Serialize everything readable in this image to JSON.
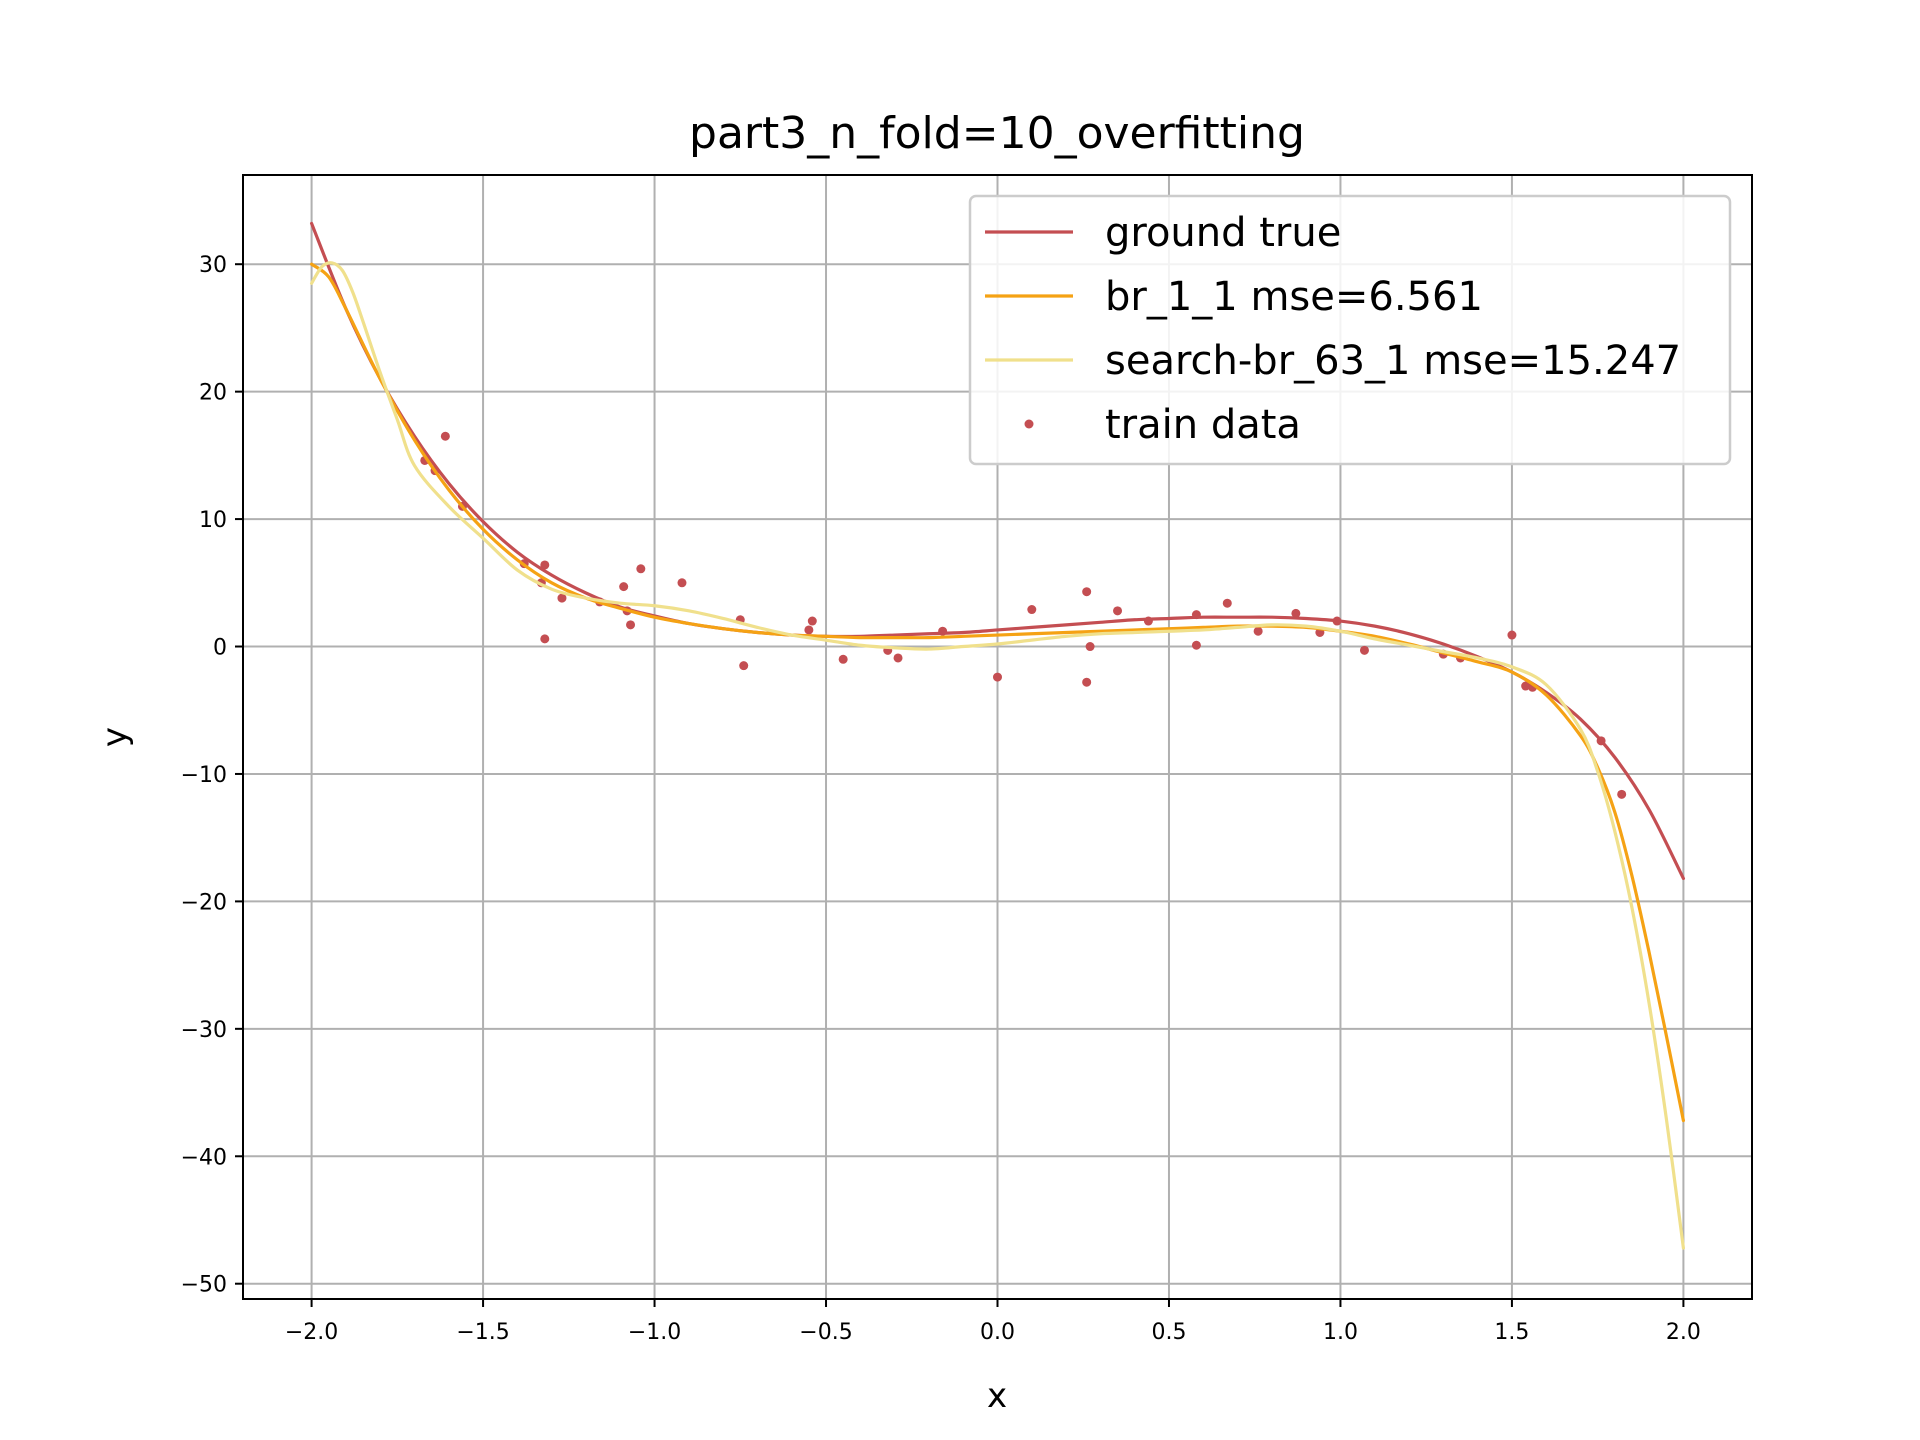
{
  "chart_data": {
    "type": "line",
    "title": "part3_n_fold=10_overfitting",
    "xlabel": "x",
    "ylabel": "y",
    "xlim": [
      -2.2,
      2.2
    ],
    "ylim": [
      -51.2,
      37
    ],
    "grid": true,
    "legend_position": "top-right",
    "x_ticks": [
      -2.0,
      -1.5,
      -1.0,
      -0.5,
      0.0,
      0.5,
      1.0,
      1.5,
      2.0
    ],
    "x_tick_labels": [
      "−2.0",
      "−1.5",
      "−1.0",
      "−0.5",
      "0.0",
      "0.5",
      "1.0",
      "1.5",
      "2.0"
    ],
    "y_ticks": [
      30,
      20,
      10,
      0,
      -10,
      -20,
      -30,
      -40,
      -50
    ],
    "y_tick_labels": [
      "30",
      "20",
      "10",
      "0",
      "−10",
      "−20",
      "−30",
      "−40",
      "−50"
    ],
    "series": [
      {
        "name": "ground true",
        "kind": "line",
        "color": "#c44e52",
        "x": [
          -2.0,
          -1.9,
          -1.8,
          -1.7,
          -1.6,
          -1.5,
          -1.4,
          -1.3,
          -1.2,
          -1.1,
          -1.0,
          -0.9,
          -0.8,
          -0.7,
          -0.6,
          -0.5,
          -0.4,
          -0.3,
          -0.2,
          -0.1,
          0.0,
          0.1,
          0.2,
          0.3,
          0.4,
          0.5,
          0.6,
          0.7,
          0.8,
          0.9,
          1.0,
          1.1,
          1.2,
          1.3,
          1.4,
          1.5,
          1.6,
          1.7,
          1.8,
          1.9,
          2.0
        ],
        "y": [
          33.2,
          26.5,
          21.0,
          16.5,
          12.8,
          9.8,
          7.4,
          5.6,
          4.2,
          3.1,
          2.4,
          1.8,
          1.4,
          1.1,
          0.9,
          0.8,
          0.8,
          0.9,
          1.0,
          1.1,
          1.3,
          1.5,
          1.7,
          1.9,
          2.1,
          2.2,
          2.3,
          2.3,
          2.3,
          2.2,
          2.0,
          1.6,
          1.0,
          0.2,
          -0.8,
          -2.0,
          -3.6,
          -5.7,
          -8.7,
          -12.8,
          -18.2
        ]
      },
      {
        "name": "br_1_1 mse=6.561",
        "kind": "line",
        "color": "#f5a214",
        "x": [
          -2.0,
          -1.95,
          -1.9,
          -1.8,
          -1.7,
          -1.6,
          -1.5,
          -1.4,
          -1.3,
          -1.2,
          -1.1,
          -1.0,
          -0.9,
          -0.8,
          -0.7,
          -0.6,
          -0.5,
          -0.4,
          -0.3,
          -0.2,
          -0.1,
          0.0,
          0.1,
          0.2,
          0.3,
          0.4,
          0.5,
          0.6,
          0.7,
          0.8,
          0.9,
          1.0,
          1.1,
          1.2,
          1.3,
          1.4,
          1.5,
          1.6,
          1.7,
          1.75,
          1.8,
          1.85,
          1.9,
          1.95,
          2.0
        ],
        "y": [
          30.0,
          29.0,
          26.5,
          21.0,
          16.2,
          12.3,
          9.2,
          6.8,
          5.0,
          3.8,
          3.0,
          2.3,
          1.8,
          1.4,
          1.1,
          0.9,
          0.8,
          0.7,
          0.7,
          0.7,
          0.8,
          0.9,
          1.0,
          1.1,
          1.2,
          1.3,
          1.4,
          1.5,
          1.6,
          1.6,
          1.5,
          1.2,
          0.8,
          0.2,
          -0.5,
          -1.2,
          -2.0,
          -3.8,
          -7.0,
          -9.5,
          -13.0,
          -18.0,
          -24.0,
          -30.5,
          -37.2
        ]
      },
      {
        "name": "search-br_63_1 mse=15.247",
        "kind": "line",
        "color": "#f0e08c",
        "x": [
          -2.0,
          -1.97,
          -1.94,
          -1.91,
          -1.88,
          -1.85,
          -1.8,
          -1.75,
          -1.7,
          -1.6,
          -1.5,
          -1.4,
          -1.3,
          -1.2,
          -1.1,
          -1.0,
          -0.9,
          -0.8,
          -0.7,
          -0.6,
          -0.5,
          -0.4,
          -0.3,
          -0.2,
          -0.1,
          0.0,
          0.1,
          0.2,
          0.3,
          0.4,
          0.5,
          0.6,
          0.7,
          0.8,
          0.9,
          1.0,
          1.1,
          1.2,
          1.3,
          1.4,
          1.5,
          1.6,
          1.7,
          1.75,
          1.8,
          1.85,
          1.9,
          1.95,
          2.0
        ],
        "y": [
          28.5,
          29.8,
          30.1,
          29.5,
          27.8,
          25.5,
          21.5,
          17.8,
          14.2,
          11.0,
          8.5,
          6.0,
          4.5,
          3.8,
          3.4,
          3.2,
          2.8,
          2.2,
          1.5,
          0.9,
          0.5,
          0.1,
          -0.1,
          -0.2,
          0.0,
          0.2,
          0.5,
          0.8,
          1.0,
          1.1,
          1.2,
          1.3,
          1.5,
          1.7,
          1.6,
          1.2,
          0.6,
          0.1,
          -0.4,
          -0.9,
          -1.6,
          -3.0,
          -6.5,
          -9.8,
          -14.5,
          -20.5,
          -28.0,
          -37.0,
          -47.2
        ]
      },
      {
        "name": "train data",
        "kind": "scatter",
        "color": "#c44e52",
        "points": [
          [
            -1.67,
            14.6
          ],
          [
            -1.64,
            13.8
          ],
          [
            -1.61,
            16.5
          ],
          [
            -1.56,
            11.0
          ],
          [
            -1.38,
            6.5
          ],
          [
            -1.33,
            5.0
          ],
          [
            -1.32,
            6.4
          ],
          [
            -1.32,
            0.6
          ],
          [
            -1.27,
            3.8
          ],
          [
            -1.16,
            3.5
          ],
          [
            -1.09,
            4.7
          ],
          [
            -1.08,
            2.8
          ],
          [
            -1.07,
            1.7
          ],
          [
            -1.04,
            6.1
          ],
          [
            -0.92,
            5.0
          ],
          [
            -0.75,
            2.1
          ],
          [
            -0.74,
            -1.5
          ],
          [
            -0.55,
            1.3
          ],
          [
            -0.54,
            2.0
          ],
          [
            -0.45,
            -1.0
          ],
          [
            -0.32,
            -0.3
          ],
          [
            -0.29,
            -0.9
          ],
          [
            -0.16,
            1.2
          ],
          [
            0.0,
            -2.4
          ],
          [
            0.1,
            2.9
          ],
          [
            0.26,
            4.3
          ],
          [
            0.26,
            -2.8
          ],
          [
            0.27,
            0.0
          ],
          [
            0.35,
            2.8
          ],
          [
            0.44,
            2.0
          ],
          [
            0.58,
            2.5
          ],
          [
            0.58,
            0.1
          ],
          [
            0.67,
            3.4
          ],
          [
            0.76,
            1.2
          ],
          [
            0.87,
            2.6
          ],
          [
            0.94,
            1.1
          ],
          [
            0.99,
            2.0
          ],
          [
            1.07,
            -0.3
          ],
          [
            1.3,
            -0.6
          ],
          [
            1.35,
            -0.9
          ],
          [
            1.5,
            0.9
          ],
          [
            1.54,
            -3.1
          ],
          [
            1.56,
            -3.2
          ],
          [
            1.76,
            -7.4
          ],
          [
            1.82,
            -11.6
          ]
        ]
      }
    ]
  }
}
